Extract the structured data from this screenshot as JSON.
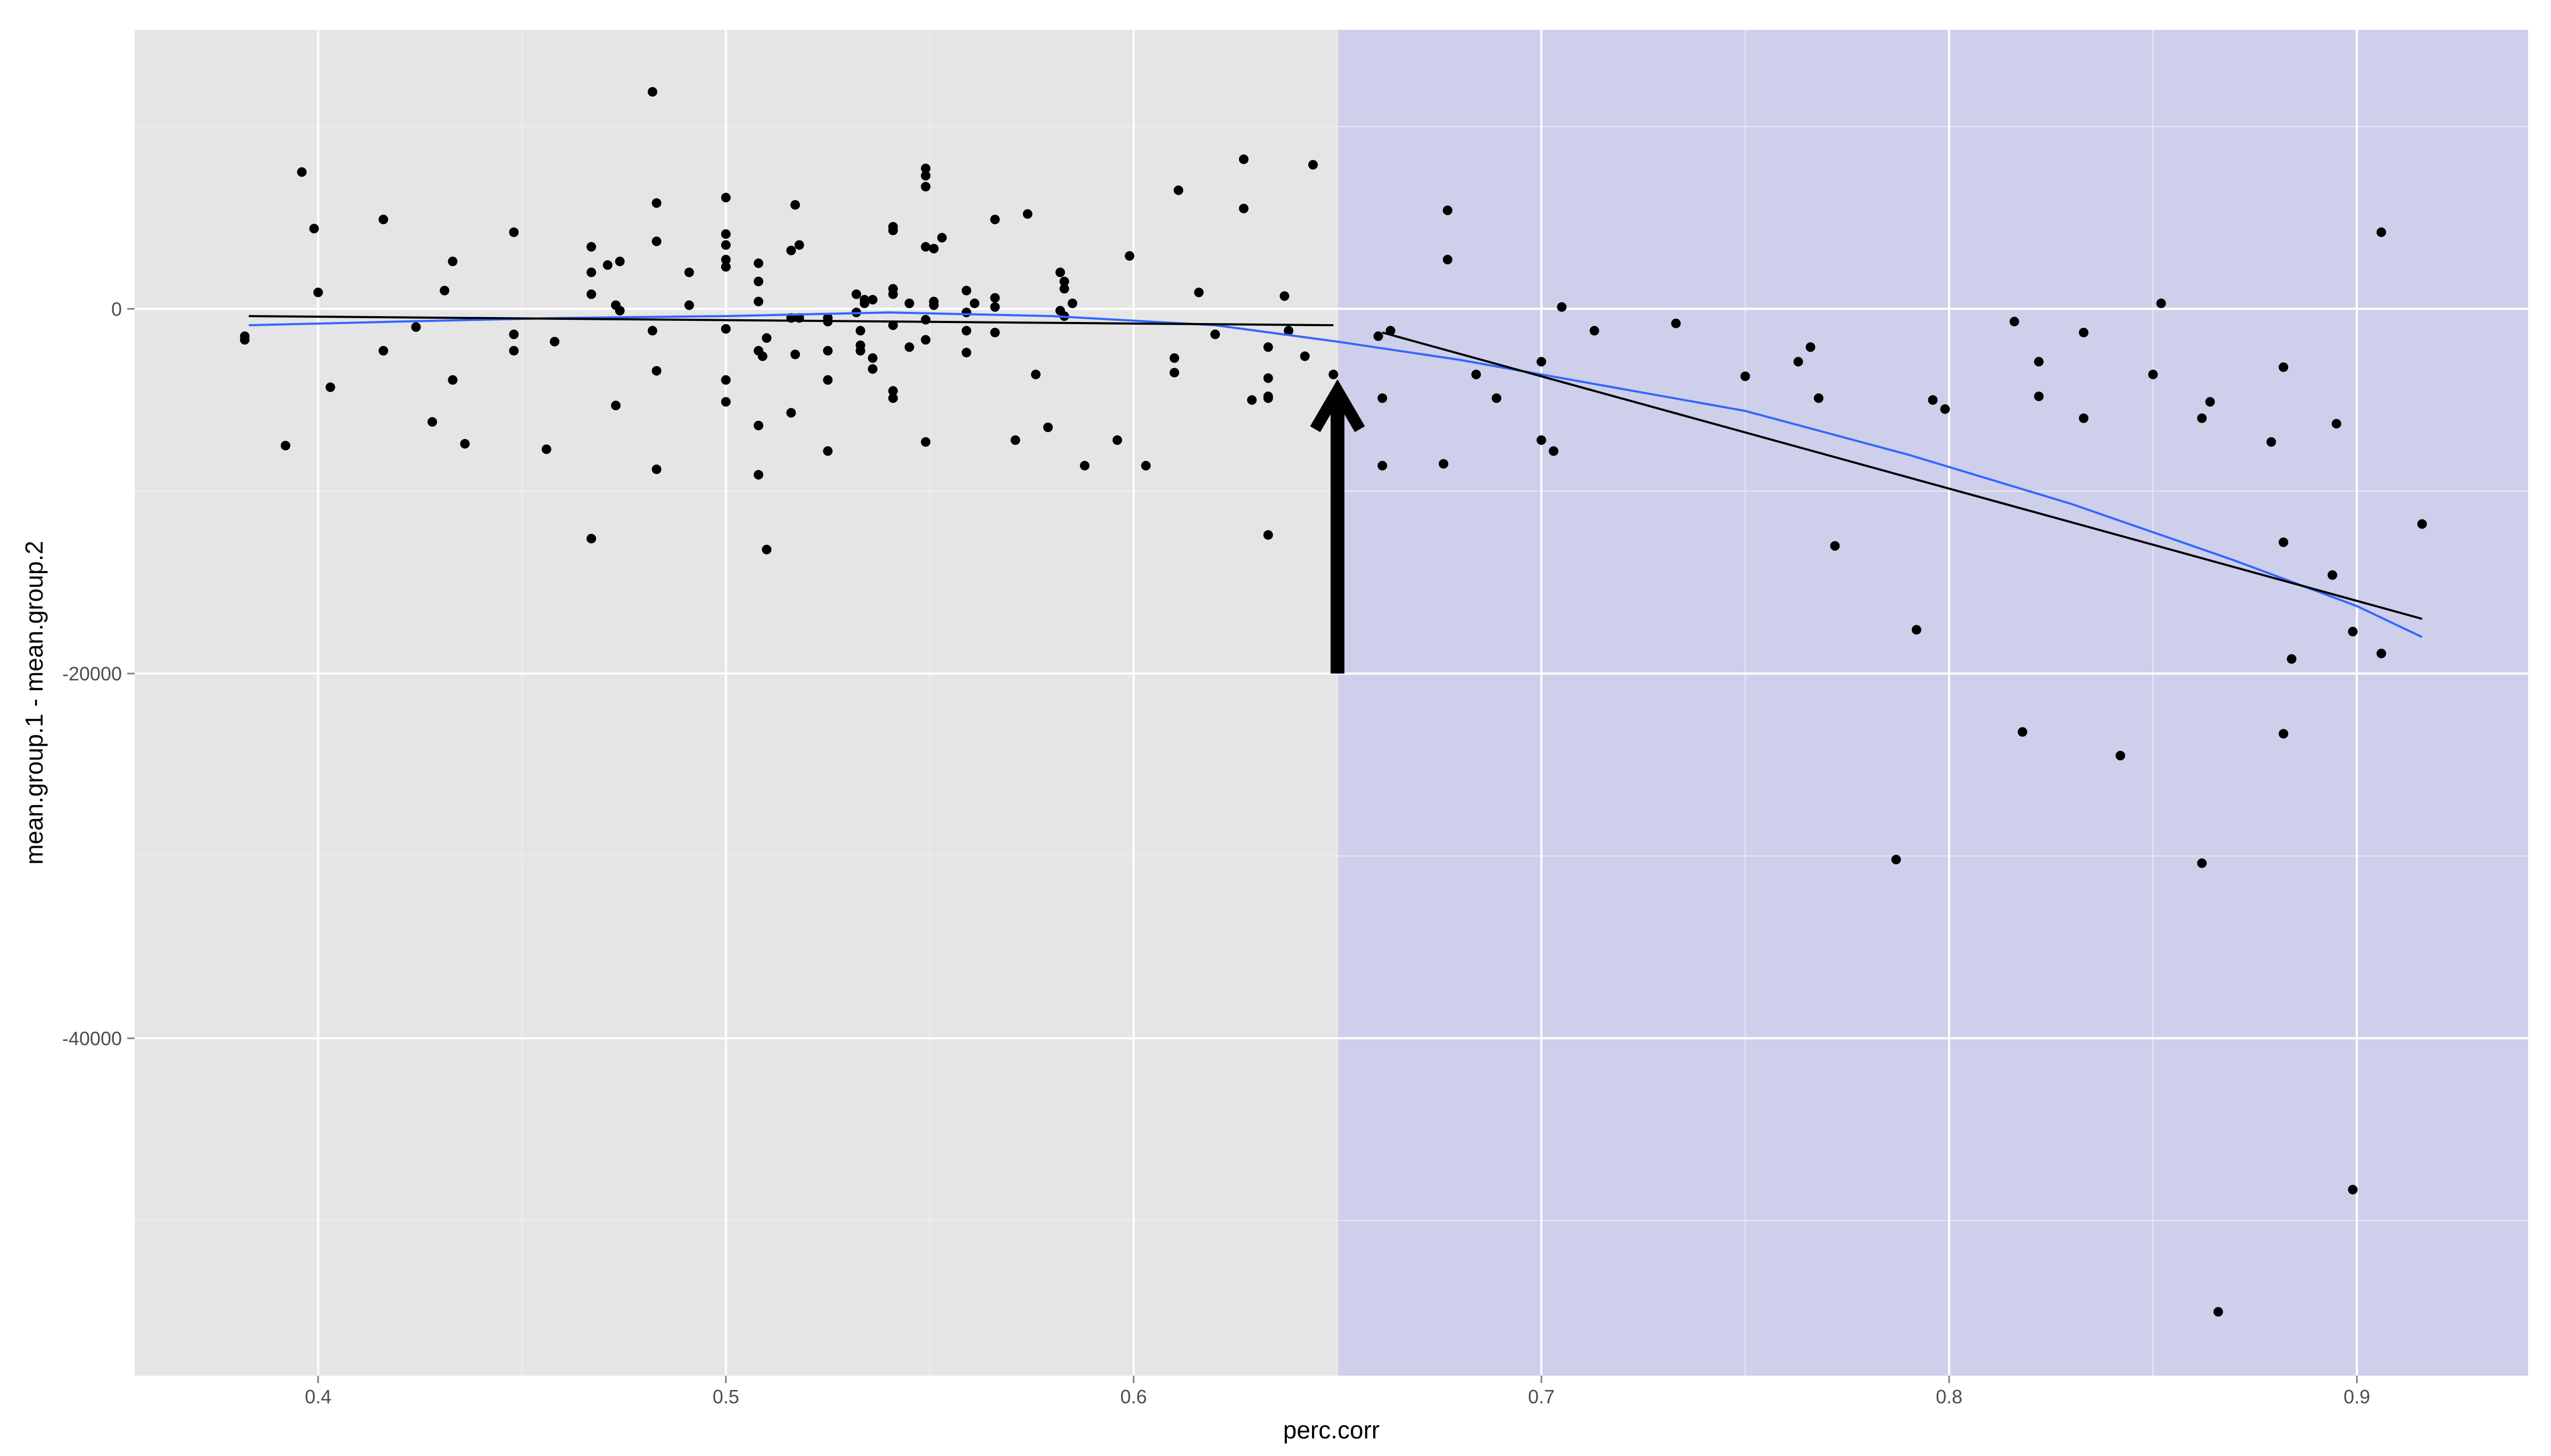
{
  "chart_data": {
    "type": "scatter",
    "xlabel": "perc.corr",
    "ylabel": "mean.group.1 - mean.group.2",
    "xlim": [
      0.355,
      0.942
    ],
    "ylim": [
      -58500,
      15300
    ],
    "x_ticks": [
      0.4,
      0.5,
      0.6,
      0.7,
      0.8,
      0.9
    ],
    "x_tick_labels": [
      "0.4",
      "0.5",
      "0.6",
      "0.7",
      "0.8",
      "0.9"
    ],
    "y_ticks": [
      0,
      -20000,
      -40000
    ],
    "y_tick_labels": [
      "0",
      "-20000",
      "-40000"
    ],
    "grid": true,
    "colors": {
      "panel": "#e5e5e5",
      "highlight": "#cecfea",
      "grid_major": "#ffffff",
      "points": "#000000",
      "linear_fit": "#000000",
      "smooth_fit": "#3366ff",
      "arrow": "#000000"
    },
    "highlight_region": {
      "x_from": 0.65,
      "x_to": 0.942
    },
    "arrow": {
      "x": 0.65,
      "y_from": -20000,
      "y_to": -4500
    },
    "points": [
      [
        0.382,
        -1500
      ],
      [
        0.382,
        -1700
      ],
      [
        0.392,
        -7500
      ],
      [
        0.396,
        7500
      ],
      [
        0.399,
        4400
      ],
      [
        0.4,
        900
      ],
      [
        0.403,
        -4300
      ],
      [
        0.416,
        4900
      ],
      [
        0.416,
        -2300
      ],
      [
        0.424,
        -1000
      ],
      [
        0.428,
        -6200
      ],
      [
        0.431,
        1000
      ],
      [
        0.433,
        2600
      ],
      [
        0.433,
        -3900
      ],
      [
        0.436,
        -7400
      ],
      [
        0.448,
        4200
      ],
      [
        0.448,
        -1400
      ],
      [
        0.448,
        -2300
      ],
      [
        0.456,
        -7700
      ],
      [
        0.458,
        -1800
      ],
      [
        0.467,
        3400
      ],
      [
        0.467,
        2000
      ],
      [
        0.467,
        800
      ],
      [
        0.467,
        -12600
      ],
      [
        0.471,
        2400
      ],
      [
        0.473,
        -5300
      ],
      [
        0.473,
        200
      ],
      [
        0.474,
        -100
      ],
      [
        0.474,
        2600
      ],
      [
        0.482,
        11900
      ],
      [
        0.483,
        5800
      ],
      [
        0.483,
        3700
      ],
      [
        0.482,
        -1200
      ],
      [
        0.483,
        -3400
      ],
      [
        0.483,
        -8800
      ],
      [
        0.491,
        2000
      ],
      [
        0.491,
        200
      ],
      [
        0.5,
        6100
      ],
      [
        0.5,
        4100
      ],
      [
        0.5,
        3500
      ],
      [
        0.5,
        2700
      ],
      [
        0.5,
        2300
      ],
      [
        0.5,
        -1100
      ],
      [
        0.5,
        -3900
      ],
      [
        0.5,
        -5100
      ],
      [
        0.508,
        2500
      ],
      [
        0.508,
        1500
      ],
      [
        0.508,
        400
      ],
      [
        0.508,
        -2300
      ],
      [
        0.509,
        -2600
      ],
      [
        0.508,
        -6400
      ],
      [
        0.508,
        -9100
      ],
      [
        0.51,
        -1600
      ],
      [
        0.51,
        -13200
      ],
      [
        0.517,
        5700
      ],
      [
        0.516,
        3200
      ],
      [
        0.518,
        3500
      ],
      [
        0.516,
        -500
      ],
      [
        0.518,
        -500
      ],
      [
        0.517,
        -2500
      ],
      [
        0.516,
        -5700
      ],
      [
        0.525,
        -500
      ],
      [
        0.525,
        -700
      ],
      [
        0.525,
        -2300
      ],
      [
        0.525,
        -3900
      ],
      [
        0.525,
        -7800
      ],
      [
        0.532,
        800
      ],
      [
        0.532,
        -200
      ],
      [
        0.534,
        300
      ],
      [
        0.534,
        500
      ],
      [
        0.536,
        500
      ],
      [
        0.533,
        -1200
      ],
      [
        0.533,
        -2000
      ],
      [
        0.533,
        -2300
      ],
      [
        0.536,
        -2700
      ],
      [
        0.536,
        -3300
      ],
      [
        0.541,
        4500
      ],
      [
        0.541,
        4300
      ],
      [
        0.541,
        1100
      ],
      [
        0.541,
        800
      ],
      [
        0.541,
        -900
      ],
      [
        0.541,
        -4500
      ],
      [
        0.541,
        -4900
      ],
      [
        0.545,
        300
      ],
      [
        0.545,
        -2100
      ],
      [
        0.549,
        7700
      ],
      [
        0.549,
        7300
      ],
      [
        0.549,
        6700
      ],
      [
        0.549,
        3400
      ],
      [
        0.551,
        3300
      ],
      [
        0.553,
        3900
      ],
      [
        0.551,
        400
      ],
      [
        0.551,
        200
      ],
      [
        0.549,
        -600
      ],
      [
        0.549,
        -1700
      ],
      [
        0.549,
        -7300
      ],
      [
        0.559,
        1000
      ],
      [
        0.559,
        -200
      ],
      [
        0.559,
        -1200
      ],
      [
        0.559,
        -2400
      ],
      [
        0.561,
        300
      ],
      [
        0.566,
        4900
      ],
      [
        0.566,
        600
      ],
      [
        0.566,
        100
      ],
      [
        0.566,
        -1300
      ],
      [
        0.571,
        -7200
      ],
      [
        0.574,
        5200
      ],
      [
        0.576,
        -3600
      ],
      [
        0.579,
        -6500
      ],
      [
        0.582,
        2000
      ],
      [
        0.582,
        -100
      ],
      [
        0.583,
        1500
      ],
      [
        0.583,
        1100
      ],
      [
        0.583,
        -400
      ],
      [
        0.585,
        300
      ],
      [
        0.588,
        -8600
      ],
      [
        0.596,
        -7200
      ],
      [
        0.599,
        2900
      ],
      [
        0.603,
        -8600
      ],
      [
        0.61,
        -2700
      ],
      [
        0.61,
        -3500
      ],
      [
        0.611,
        6500
      ],
      [
        0.616,
        900
      ],
      [
        0.62,
        -1400
      ],
      [
        0.627,
        8200
      ],
      [
        0.627,
        5500
      ],
      [
        0.629,
        -5000
      ],
      [
        0.633,
        -2100
      ],
      [
        0.633,
        -3800
      ],
      [
        0.633,
        -4800
      ],
      [
        0.633,
        -4900
      ],
      [
        0.633,
        -12400
      ],
      [
        0.637,
        700
      ],
      [
        0.638,
        -1200
      ],
      [
        0.642,
        -2600
      ],
      [
        0.644,
        7900
      ],
      [
        0.649,
        -3600
      ],
      [
        0.66,
        -1500
      ],
      [
        0.661,
        -4900
      ],
      [
        0.661,
        -8600
      ],
      [
        0.663,
        -1200
      ],
      [
        0.676,
        -8500
      ],
      [
        0.677,
        5400
      ],
      [
        0.677,
        2700
      ],
      [
        0.684,
        -3600
      ],
      [
        0.689,
        -4900
      ],
      [
        0.7,
        -2900
      ],
      [
        0.7,
        -7200
      ],
      [
        0.703,
        -7800
      ],
      [
        0.705,
        100
      ],
      [
        0.713,
        -1200
      ],
      [
        0.733,
        -800
      ],
      [
        0.75,
        -3700
      ],
      [
        0.763,
        -2900
      ],
      [
        0.766,
        -2100
      ],
      [
        0.768,
        -4900
      ],
      [
        0.772,
        -13000
      ],
      [
        0.787,
        -30200
      ],
      [
        0.792,
        -17600
      ],
      [
        0.796,
        -5000
      ],
      [
        0.799,
        -5500
      ],
      [
        0.816,
        -700
      ],
      [
        0.818,
        -23200
      ],
      [
        0.822,
        -2900
      ],
      [
        0.822,
        -4800
      ],
      [
        0.833,
        -1300
      ],
      [
        0.833,
        -6000
      ],
      [
        0.842,
        -24500
      ],
      [
        0.85,
        -3600
      ],
      [
        0.852,
        300
      ],
      [
        0.862,
        -6000
      ],
      [
        0.862,
        -30400
      ],
      [
        0.864,
        -5100
      ],
      [
        0.866,
        -55000
      ],
      [
        0.879,
        -7300
      ],
      [
        0.882,
        -3200
      ],
      [
        0.882,
        -12800
      ],
      [
        0.882,
        -23300
      ],
      [
        0.884,
        -19200
      ],
      [
        0.894,
        -14600
      ],
      [
        0.895,
        -6300
      ],
      [
        0.899,
        -17700
      ],
      [
        0.899,
        -48300
      ],
      [
        0.906,
        4200
      ],
      [
        0.906,
        -18900
      ],
      [
        0.916,
        -11800
      ]
    ],
    "linear_fit_1": [
      [
        0.383,
        -400
      ],
      [
        0.649,
        -900
      ]
    ],
    "linear_fit_2": [
      [
        0.661,
        -1300
      ],
      [
        0.916,
        -17000
      ]
    ],
    "smooth_fit": [
      [
        0.383,
        -900
      ],
      [
        0.42,
        -700
      ],
      [
        0.46,
        -500
      ],
      [
        0.5,
        -400
      ],
      [
        0.54,
        -200
      ],
      [
        0.58,
        -400
      ],
      [
        0.62,
        -900
      ],
      [
        0.65,
        -1800
      ],
      [
        0.68,
        -2800
      ],
      [
        0.71,
        -4000
      ],
      [
        0.75,
        -5600
      ],
      [
        0.79,
        -8000
      ],
      [
        0.83,
        -10700
      ],
      [
        0.87,
        -13800
      ],
      [
        0.9,
        -16300
      ],
      [
        0.916,
        -18000
      ]
    ]
  }
}
